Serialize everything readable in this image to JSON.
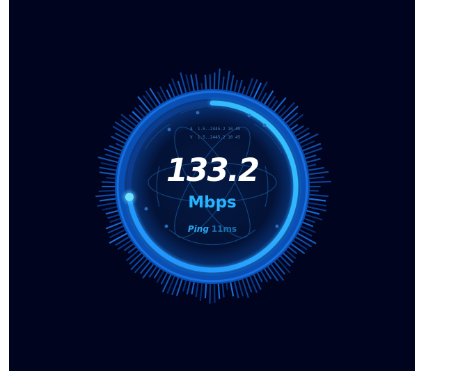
{
  "gauge": {
    "value": "133.2",
    "unit": "Mbps",
    "ping_label": "Ping",
    "ping_value": "11ms",
    "progress_fraction": 0.73,
    "addresses": [
      {
        "prefix": "A",
        "text": "1.5..2445.2 10 45"
      },
      {
        "prefix": "V",
        "text": "1.5..2445.2 10 45"
      }
    ]
  },
  "colors": {
    "background": "#01041e",
    "accent": "#27b4ff",
    "ring": "#0a58c4",
    "glow": "#36c6ff"
  }
}
